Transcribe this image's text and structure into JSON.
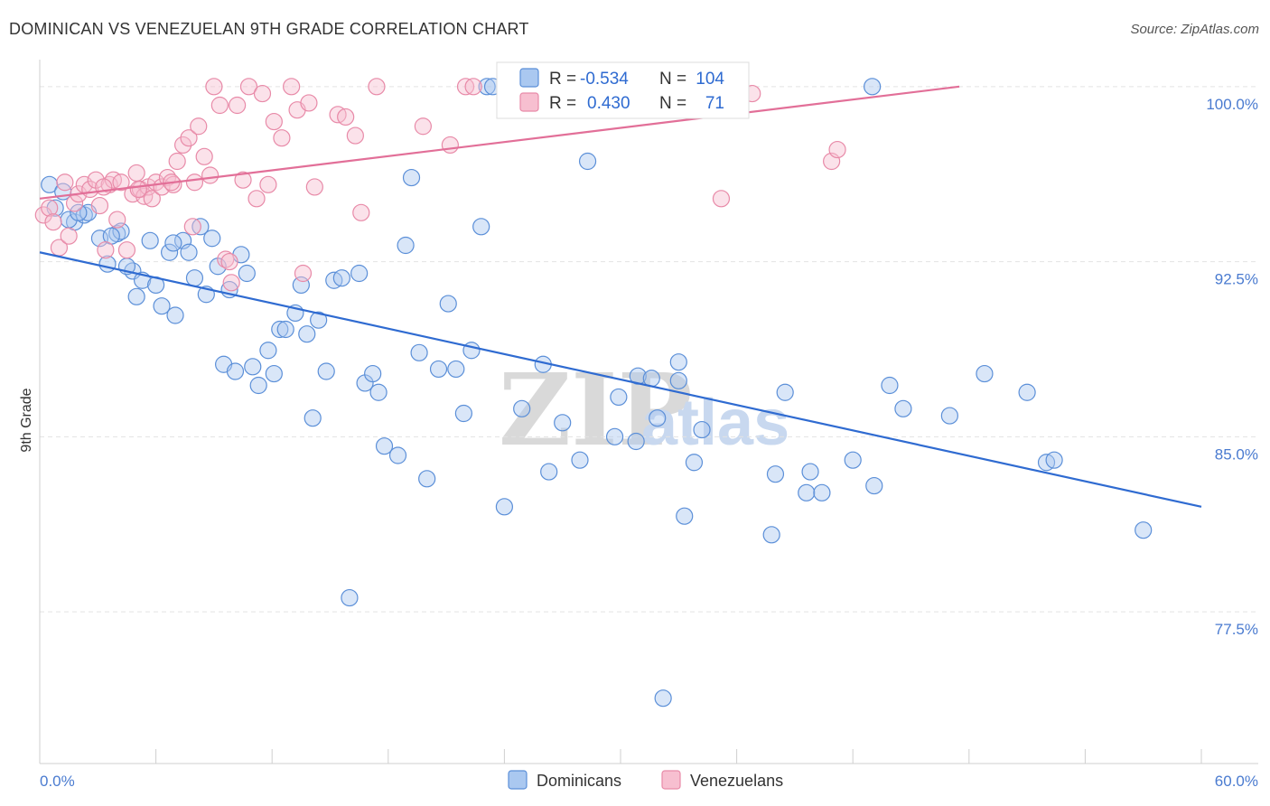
{
  "title": "DOMINICAN VS VENEZUELAN 9TH GRADE CORRELATION CHART",
  "source": "Source: ZipAtlas.com",
  "watermark": {
    "zip": "ZIP",
    "atlas": "atlas"
  },
  "colors": {
    "dominican_fill": "#aac8f0",
    "dominican_stroke": "#5b8fd8",
    "dominican_line": "#2f6bd1",
    "venezuelan_fill": "#f7bfd0",
    "venezuelan_stroke": "#e88aa8",
    "venezuelan_line": "#e26f98",
    "tick_text": "#4a7bd0",
    "grid": "#e3e3e3"
  },
  "legend": {
    "rows": [
      {
        "r_label": "R =",
        "r_value": "-0.534",
        "n_label": "N =",
        "n_value": "104"
      },
      {
        "r_label": "R =",
        "r_value": "0.430",
        "n_label": "N =",
        "n_value": "71"
      }
    ]
  },
  "bottom_legend": [
    "Dominicans",
    "Venezuelans"
  ],
  "chart_data": {
    "type": "scatter",
    "title": "DOMINICAN VS VENEZUELAN 9TH GRADE CORRELATION CHART",
    "xlabel": "",
    "ylabel": "9th Grade",
    "xlim": [
      0,
      60
    ],
    "ylim": [
      71,
      101
    ],
    "x_tick_labels": [
      "0.0%",
      "60.0%"
    ],
    "y_ticks": [
      77.5,
      85.0,
      92.5,
      100.0
    ],
    "y_tick_labels": [
      "77.5%",
      "85.0%",
      "92.5%",
      "100.0%"
    ],
    "grid": true,
    "legend_position": "top-center",
    "series": [
      {
        "name": "Dominicans",
        "r": -0.534,
        "n": 104,
        "trend": [
          [
            0,
            92.9
          ],
          [
            60,
            82.0
          ]
        ],
        "points": [
          [
            0.5,
            95.8
          ],
          [
            1.2,
            95.5
          ],
          [
            1.8,
            94.2
          ],
          [
            2.3,
            94.5
          ],
          [
            2.5,
            94.6
          ],
          [
            3.1,
            93.5
          ],
          [
            3.5,
            92.4
          ],
          [
            4.0,
            93.7
          ],
          [
            4.2,
            93.8
          ],
          [
            4.8,
            92.1
          ],
          [
            5.0,
            91.0
          ],
          [
            5.3,
            91.7
          ],
          [
            5.7,
            93.4
          ],
          [
            6.0,
            91.5
          ],
          [
            6.3,
            90.6
          ],
          [
            6.7,
            92.9
          ],
          [
            7.0,
            90.2
          ],
          [
            7.4,
            93.4
          ],
          [
            7.7,
            92.9
          ],
          [
            8.0,
            91.8
          ],
          [
            8.3,
            94.0
          ],
          [
            8.6,
            91.1
          ],
          [
            8.9,
            93.5
          ],
          [
            9.2,
            92.3
          ],
          [
            9.5,
            88.1
          ],
          [
            9.8,
            91.3
          ],
          [
            10.1,
            87.8
          ],
          [
            10.4,
            92.8
          ],
          [
            10.7,
            92.0
          ],
          [
            11.0,
            88.0
          ],
          [
            11.3,
            87.2
          ],
          [
            11.8,
            88.7
          ],
          [
            12.1,
            87.7
          ],
          [
            12.4,
            89.6
          ],
          [
            12.7,
            89.6
          ],
          [
            13.2,
            90.3
          ],
          [
            13.5,
            91.5
          ],
          [
            13.8,
            89.4
          ],
          [
            14.1,
            85.8
          ],
          [
            14.4,
            90.0
          ],
          [
            14.8,
            87.8
          ],
          [
            15.2,
            91.7
          ],
          [
            15.6,
            91.8
          ],
          [
            16.0,
            78.1
          ],
          [
            16.5,
            92.0
          ],
          [
            16.8,
            87.3
          ],
          [
            17.2,
            87.7
          ],
          [
            17.5,
            86.9
          ],
          [
            17.8,
            84.6
          ],
          [
            18.5,
            84.2
          ],
          [
            18.9,
            93.2
          ],
          [
            19.2,
            96.1
          ],
          [
            19.6,
            88.6
          ],
          [
            20.0,
            83.2
          ],
          [
            20.6,
            87.9
          ],
          [
            21.1,
            90.7
          ],
          [
            21.5,
            87.9
          ],
          [
            21.9,
            86.0
          ],
          [
            22.3,
            88.7
          ],
          [
            22.8,
            94.0
          ],
          [
            23.1,
            100.0
          ],
          [
            23.4,
            100.0
          ],
          [
            24.0,
            82.0
          ],
          [
            24.9,
            86.2
          ],
          [
            26.0,
            88.1
          ],
          [
            26.3,
            83.5
          ],
          [
            27.0,
            85.6
          ],
          [
            27.9,
            84.0
          ],
          [
            28.3,
            96.8
          ],
          [
            29.7,
            85.0
          ],
          [
            29.9,
            86.7
          ],
          [
            30.8,
            84.8
          ],
          [
            30.9,
            87.6
          ],
          [
            31.6,
            87.5
          ],
          [
            31.9,
            85.8
          ],
          [
            32.2,
            73.8
          ],
          [
            33.0,
            88.2
          ],
          [
            33.0,
            87.4
          ],
          [
            33.3,
            81.6
          ],
          [
            33.8,
            83.9
          ],
          [
            34.2,
            85.3
          ],
          [
            37.8,
            80.8
          ],
          [
            38.0,
            83.4
          ],
          [
            38.5,
            86.9
          ],
          [
            39.6,
            82.6
          ],
          [
            39.8,
            83.5
          ],
          [
            40.4,
            82.6
          ],
          [
            42.0,
            84.0
          ],
          [
            43.0,
            100.0
          ],
          [
            43.1,
            82.9
          ],
          [
            43.9,
            87.2
          ],
          [
            44.6,
            86.2
          ],
          [
            47.0,
            85.9
          ],
          [
            48.8,
            87.7
          ],
          [
            51.0,
            86.9
          ],
          [
            52.0,
            83.9
          ],
          [
            52.4,
            84.0
          ],
          [
            57.0,
            81.0
          ],
          [
            0.8,
            94.8
          ],
          [
            1.5,
            94.3
          ],
          [
            2.0,
            94.6
          ],
          [
            3.7,
            93.6
          ],
          [
            4.5,
            92.3
          ],
          [
            6.9,
            93.3
          ]
        ]
      },
      {
        "name": "Venezuelans",
        "r": 0.43,
        "n": 71,
        "trend": [
          [
            0,
            95.2
          ],
          [
            47.5,
            100.0
          ]
        ],
        "points": [
          [
            0.2,
            94.5
          ],
          [
            0.5,
            94.8
          ],
          [
            0.7,
            94.2
          ],
          [
            1.0,
            93.1
          ],
          [
            1.3,
            95.9
          ],
          [
            1.5,
            93.6
          ],
          [
            1.8,
            95.0
          ],
          [
            2.0,
            95.4
          ],
          [
            2.3,
            95.8
          ],
          [
            2.6,
            95.6
          ],
          [
            2.9,
            96.0
          ],
          [
            3.1,
            94.9
          ],
          [
            3.4,
            93.0
          ],
          [
            3.6,
            95.8
          ],
          [
            3.8,
            96.0
          ],
          [
            4.0,
            94.3
          ],
          [
            4.2,
            95.9
          ],
          [
            4.5,
            93.0
          ],
          [
            4.8,
            95.4
          ],
          [
            5.0,
            96.3
          ],
          [
            5.2,
            95.6
          ],
          [
            5.4,
            95.3
          ],
          [
            5.6,
            95.7
          ],
          [
            5.8,
            95.2
          ],
          [
            6.0,
            95.9
          ],
          [
            6.3,
            95.7
          ],
          [
            6.6,
            96.1
          ],
          [
            6.9,
            95.8
          ],
          [
            7.1,
            96.8
          ],
          [
            7.4,
            97.5
          ],
          [
            7.7,
            97.8
          ],
          [
            8.0,
            95.9
          ],
          [
            8.2,
            98.3
          ],
          [
            8.5,
            97.0
          ],
          [
            8.8,
            96.2
          ],
          [
            9.0,
            100.0
          ],
          [
            9.3,
            99.2
          ],
          [
            9.6,
            92.6
          ],
          [
            9.9,
            91.6
          ],
          [
            10.2,
            99.2
          ],
          [
            10.5,
            96.0
          ],
          [
            10.8,
            100.0
          ],
          [
            11.2,
            95.2
          ],
          [
            11.5,
            99.7
          ],
          [
            11.8,
            95.8
          ],
          [
            12.1,
            98.5
          ],
          [
            12.5,
            97.8
          ],
          [
            13.0,
            100.0
          ],
          [
            13.3,
            99.0
          ],
          [
            13.6,
            92.0
          ],
          [
            13.9,
            99.3
          ],
          [
            14.2,
            95.7
          ],
          [
            15.4,
            98.8
          ],
          [
            15.8,
            98.7
          ],
          [
            16.3,
            97.9
          ],
          [
            16.6,
            94.6
          ],
          [
            17.4,
            100.0
          ],
          [
            19.8,
            98.3
          ],
          [
            21.2,
            97.5
          ],
          [
            22.0,
            100.0
          ],
          [
            22.4,
            100.0
          ],
          [
            33.0,
            99.9
          ],
          [
            35.2,
            95.2
          ],
          [
            36.8,
            99.7
          ],
          [
            40.9,
            96.8
          ],
          [
            41.2,
            97.3
          ],
          [
            5.1,
            95.6
          ],
          [
            6.8,
            95.9
          ],
          [
            7.9,
            94.0
          ],
          [
            9.8,
            92.5
          ],
          [
            3.3,
            95.7
          ]
        ]
      }
    ]
  }
}
